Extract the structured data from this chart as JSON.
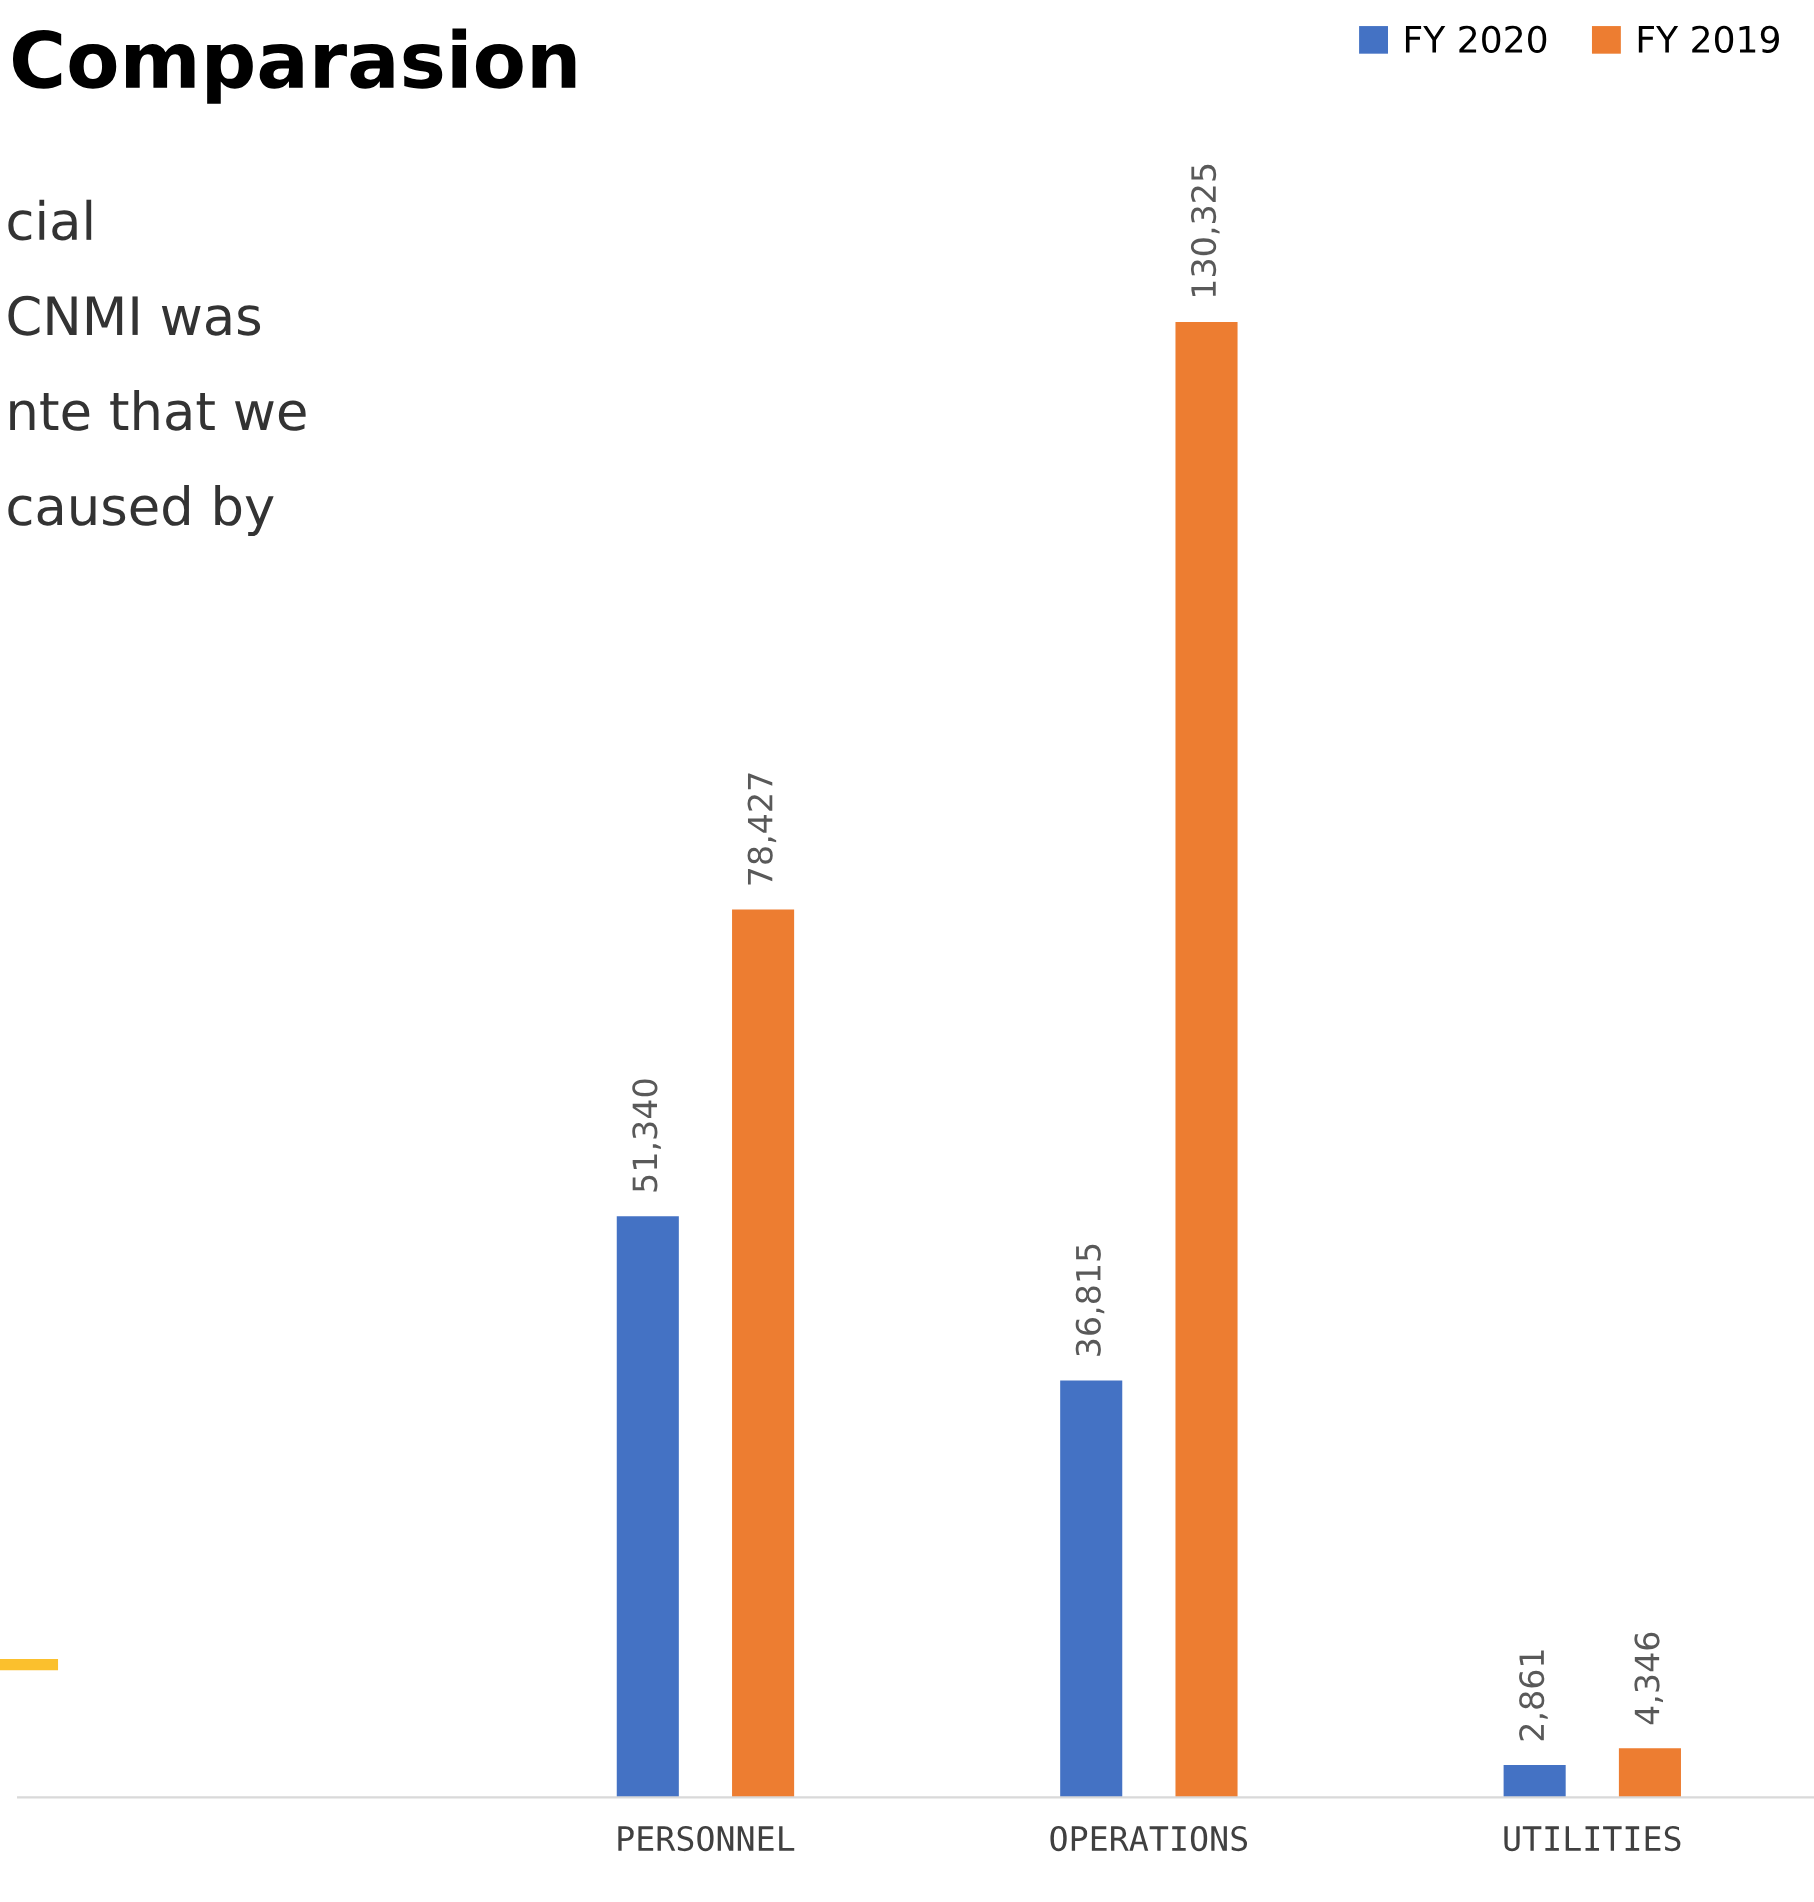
{
  "chart_data": {
    "type": "bar",
    "title": "Comparasion",
    "categories": [
      "PERSONNEL",
      "OPERATIONS",
      "UTILITIES"
    ],
    "series": [
      {
        "name": "FY 2020",
        "color": "#4472c4",
        "values": [
          51340,
          36815,
          2861
        ],
        "value_labels": [
          "51,340",
          "36,815",
          "2,861"
        ]
      },
      {
        "name": "FY 2019",
        "color": "#ed7d31",
        "values": [
          78427,
          130325,
          4346
        ],
        "value_labels": [
          "78,427",
          "130,325",
          "4,346"
        ]
      }
    ],
    "annotations": [
      "cial",
      "CNMI was",
      "nte that we",
      "caused by"
    ],
    "legend": "top right",
    "grid": false
  }
}
